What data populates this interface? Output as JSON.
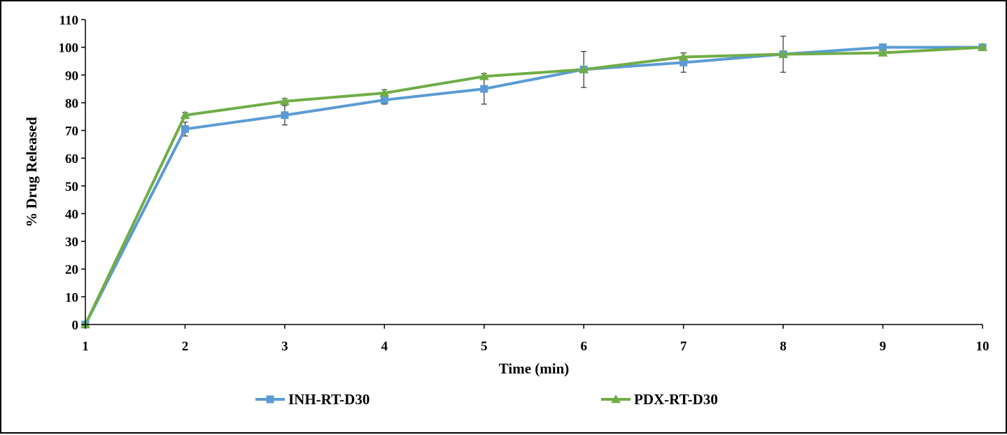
{
  "chart_data": {
    "type": "line",
    "title": "",
    "xlabel": "Time (min)",
    "ylabel": "% Drug Released",
    "x": [
      1,
      2,
      3,
      4,
      5,
      6,
      7,
      8,
      9,
      10
    ],
    "xlim": [
      1,
      10
    ],
    "ylim": [
      0,
      110
    ],
    "yticks": [
      0,
      10,
      20,
      30,
      40,
      50,
      60,
      70,
      80,
      90,
      100,
      110
    ],
    "xticks": [
      1,
      2,
      3,
      4,
      5,
      6,
      7,
      8,
      9,
      10
    ],
    "grid": false,
    "legend_position": "bottom",
    "series": [
      {
        "name": "INH-RT-D30",
        "color": "#5b9bd5",
        "marker": "square",
        "values": [
          0,
          70.5,
          75.5,
          81,
          85,
          92,
          94.5,
          97.5,
          100,
          100
        ],
        "errors": [
          0,
          2.5,
          3.5,
          1.5,
          5.5,
          6.5,
          3.5,
          6.5,
          0,
          0
        ]
      },
      {
        "name": "PDX-RT-D30",
        "color": "#70ad47",
        "marker": "triangle",
        "values": [
          0,
          75.5,
          80.5,
          83.5,
          89.5,
          92,
          96.5,
          97.5,
          98,
          100
        ],
        "errors": [
          0,
          1,
          1,
          1.2,
          1,
          0,
          1.5,
          0,
          0,
          0
        ]
      }
    ]
  }
}
